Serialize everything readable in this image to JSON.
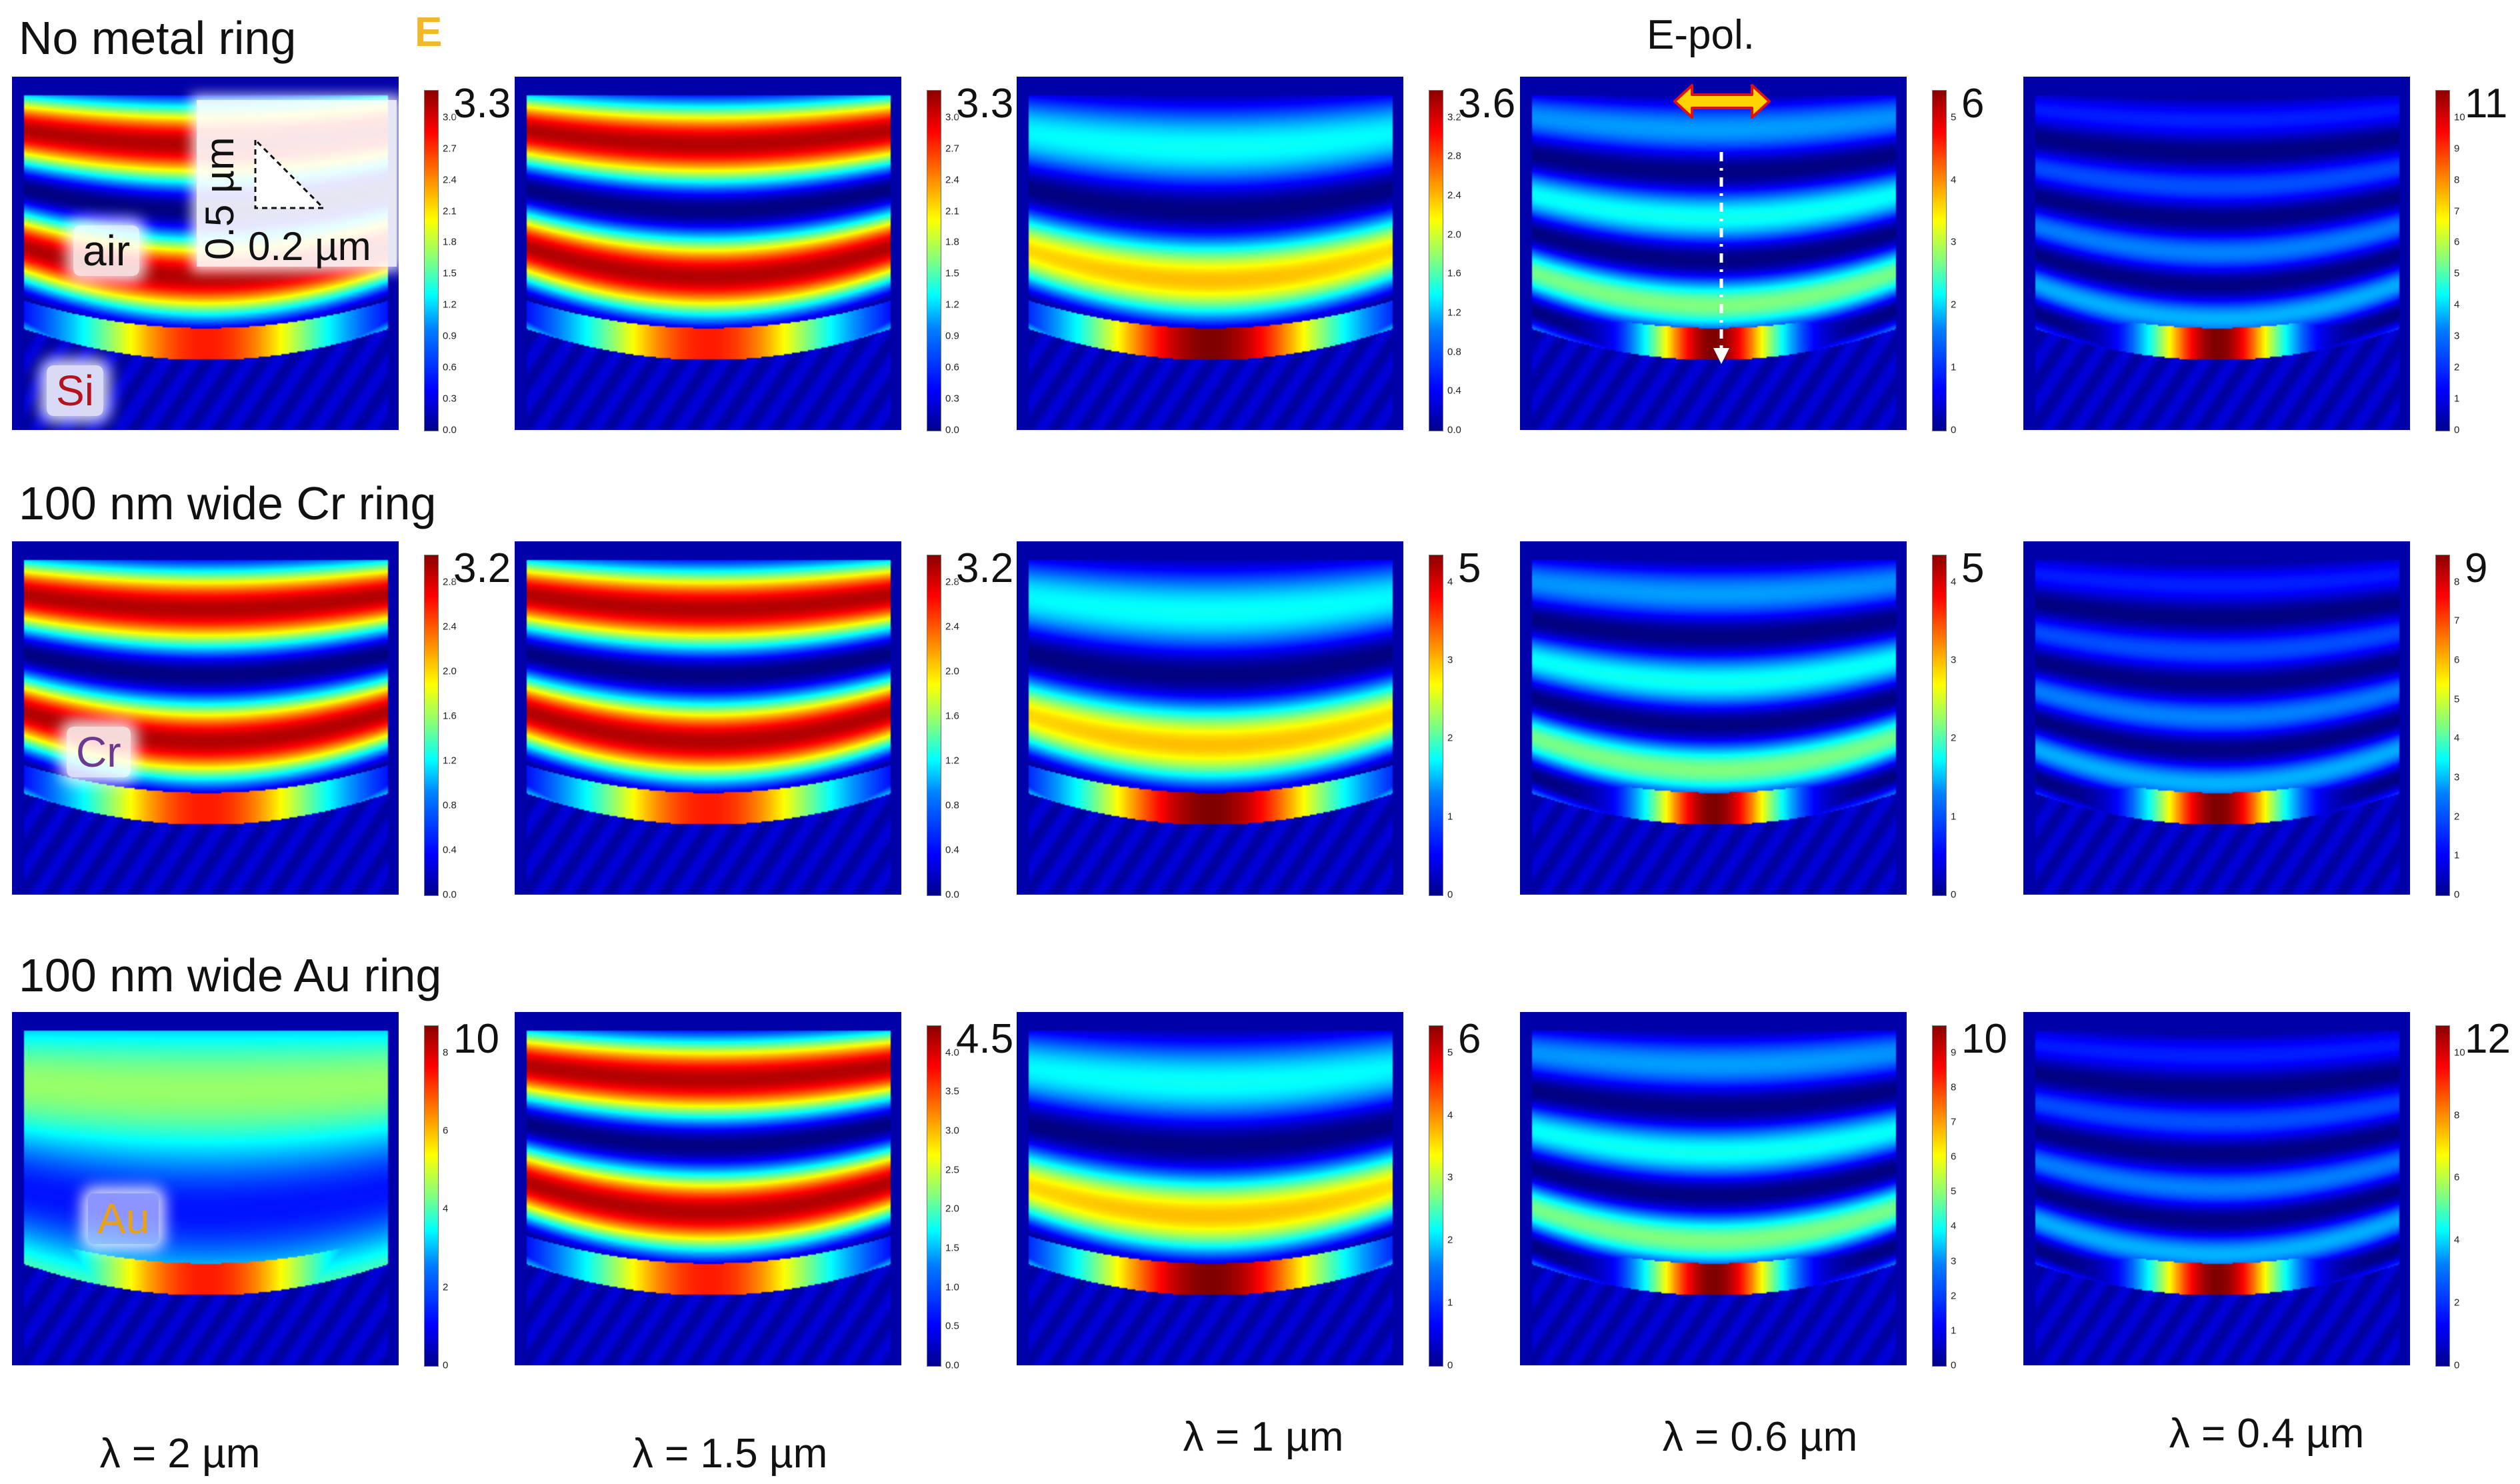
{
  "figure": {
    "top_label": "E-pol.",
    "e_field_label": "E",
    "scale_labels": {
      "vertical": "0.5 µm",
      "horizontal": "0.2 µm"
    },
    "rows": [
      {
        "title": "No metal ring",
        "tag": "air",
        "material": "Si",
        "panels": [
          {
            "max": "3.3",
            "ticks": [
              "3.0",
              "2.7",
              "2.4",
              "2.1",
              "1.8",
              "1.5",
              "1.2",
              "0.9",
              "0.6",
              "0.3",
              "0.0"
            ]
          },
          {
            "max": "3.3",
            "ticks": [
              "3.0",
              "2.7",
              "2.4",
              "2.1",
              "1.8",
              "1.5",
              "1.2",
              "0.9",
              "0.6",
              "0.3",
              "0.0"
            ]
          },
          {
            "max": "3.6",
            "ticks": [
              "3.2",
              "2.8",
              "2.4",
              "2.0",
              "1.6",
              "1.2",
              "0.8",
              "0.4",
              "0.0"
            ]
          },
          {
            "max": "6",
            "ticks": [
              "5",
              "4",
              "3",
              "2",
              "1",
              "0"
            ]
          },
          {
            "max": "11",
            "ticks": [
              "10",
              "9",
              "8",
              "7",
              "6",
              "5",
              "4",
              "3",
              "2",
              "1",
              "0"
            ]
          }
        ]
      },
      {
        "title": "100 nm wide Cr ring",
        "material": "Cr",
        "panels": [
          {
            "max": "3.2",
            "ticks": [
              "2.8",
              "2.4",
              "2.0",
              "1.6",
              "1.2",
              "0.8",
              "0.4",
              "0.0"
            ]
          },
          {
            "max": "3.2",
            "ticks": [
              "2.8",
              "2.4",
              "2.0",
              "1.6",
              "1.2",
              "0.8",
              "0.4",
              "0.0"
            ]
          },
          {
            "max": "5",
            "ticks": [
              "4",
              "3",
              "2",
              "1",
              "0"
            ]
          },
          {
            "max": "5",
            "ticks": [
              "4",
              "3",
              "2",
              "1",
              "0"
            ]
          },
          {
            "max": "9",
            "ticks": [
              "8",
              "7",
              "6",
              "5",
              "4",
              "3",
              "2",
              "1",
              "0"
            ]
          }
        ]
      },
      {
        "title": "100 nm wide Au ring",
        "material": "Au",
        "panels": [
          {
            "max": "10",
            "ticks": [
              "8",
              "6",
              "4",
              "2",
              "0"
            ]
          },
          {
            "max": "4.5",
            "ticks": [
              "4.0",
              "3.5",
              "3.0",
              "2.5",
              "2.0",
              "1.5",
              "1.0",
              "0.5",
              "0.0"
            ]
          },
          {
            "max": "6",
            "ticks": [
              "5",
              "4",
              "3",
              "2",
              "1",
              "0"
            ]
          },
          {
            "max": "10",
            "ticks": [
              "9",
              "8",
              "7",
              "6",
              "5",
              "4",
              "3",
              "2",
              "1",
              "0"
            ]
          },
          {
            "max": "12",
            "ticks": [
              "10",
              "8",
              "6",
              "4",
              "2",
              "0"
            ]
          }
        ]
      }
    ],
    "columns": [
      {
        "wavelength_label": "λ = 2 µm",
        "wavelength_um": 2.0
      },
      {
        "wavelength_label": "λ = 1.5 µm",
        "wavelength_um": 1.5
      },
      {
        "wavelength_label": "λ = 1 µm",
        "wavelength_um": 1.0
      },
      {
        "wavelength_label": "λ = 0.6 µm",
        "wavelength_um": 0.6
      },
      {
        "wavelength_label": "λ = 0.4 µm",
        "wavelength_um": 0.4
      }
    ],
    "colors": {
      "background": "#ffffff",
      "colormap_low": "#00008c",
      "colormap_high": "#8c0000",
      "si_label": "#b3131b",
      "cr_label": "#6b3a8e",
      "au_label": "#e7a21b",
      "e_label": "#f0b82b",
      "arrow_fill": "#ffd400",
      "arrow_outline": "#e01010"
    }
  }
}
